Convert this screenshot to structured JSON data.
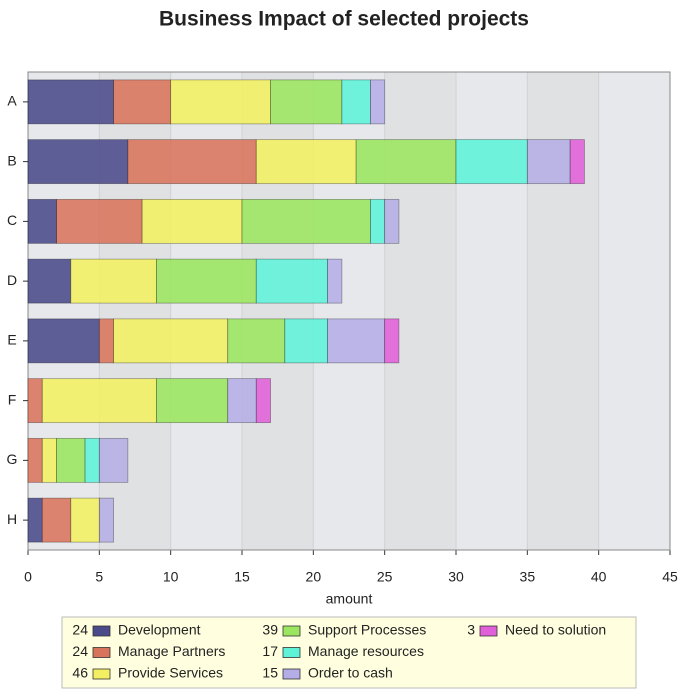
{
  "chart_data": {
    "type": "stacked-barh",
    "title": "Business Impact of selected projects",
    "categories": [
      "A",
      "B",
      "C",
      "D",
      "E",
      "F",
      "G",
      "H"
    ],
    "series": [
      {
        "name": "Development",
        "total": 24,
        "color": "#4b4a8a",
        "values": [
          6,
          7,
          2,
          3,
          5,
          0,
          0,
          1
        ]
      },
      {
        "name": "Manage Partners",
        "total": 24,
        "color": "#d9745c",
        "values": [
          4,
          9,
          6,
          0,
          1,
          1,
          1,
          2
        ]
      },
      {
        "name": "Provide Services",
        "total": 46,
        "color": "#f2f062",
        "values": [
          7,
          7,
          7,
          6,
          8,
          8,
          1,
          2
        ]
      },
      {
        "name": "Support Processes",
        "total": 39,
        "color": "#9be65e",
        "values": [
          5,
          7,
          9,
          7,
          4,
          5,
          2,
          0
        ]
      },
      {
        "name": "Manage resources",
        "total": 17,
        "color": "#5ef2d9",
        "values": [
          2,
          5,
          1,
          5,
          3,
          0,
          1,
          0
        ]
      },
      {
        "name": "Order to cash",
        "total": 15,
        "color": "#b5aee6",
        "values": [
          1,
          3,
          1,
          1,
          4,
          2,
          2,
          1
        ]
      },
      {
        "name": "Need to solution",
        "total": 3,
        "color": "#e060d9",
        "values": [
          0,
          1,
          0,
          0,
          1,
          1,
          0,
          0
        ]
      }
    ],
    "xlabel": "amount",
    "xlim": [
      0,
      45
    ],
    "xticks": [
      0,
      5,
      10,
      15,
      20,
      25,
      30,
      35,
      40,
      45
    ],
    "grid": true
  }
}
